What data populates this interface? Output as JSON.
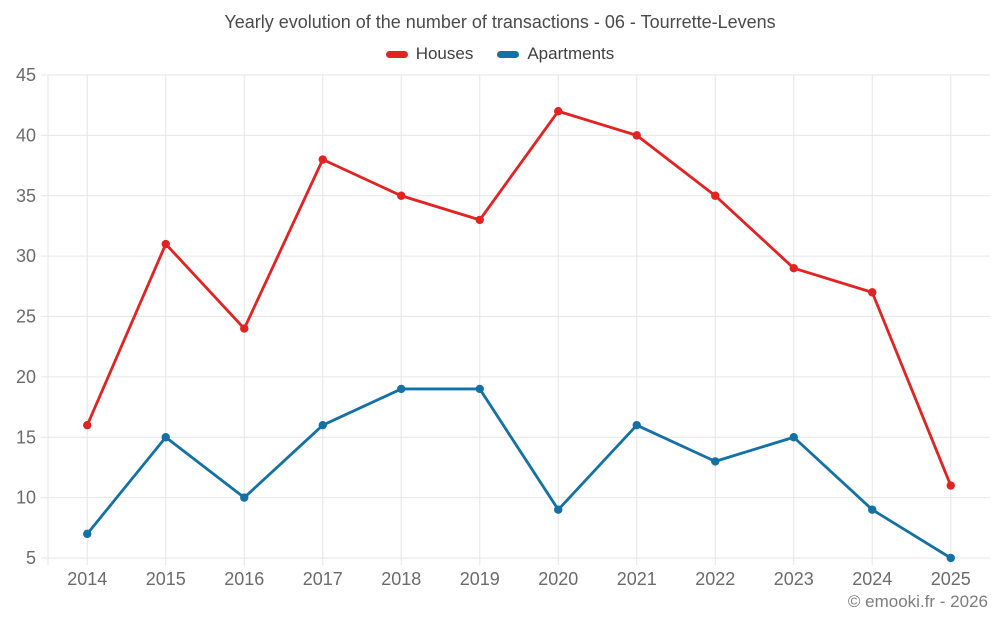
{
  "chart_data": {
    "type": "line",
    "title": "Yearly evolution of the number of transactions - 06 - Tourrette-Levens",
    "categories": [
      "2014",
      "2015",
      "2016",
      "2017",
      "2018",
      "2019",
      "2020",
      "2021",
      "2022",
      "2023",
      "2024",
      "2025"
    ],
    "series": [
      {
        "name": "Houses",
        "color": "#e32222",
        "values": [
          16,
          31,
          24,
          38,
          35,
          33,
          42,
          40,
          35,
          29,
          27,
          11
        ]
      },
      {
        "name": "Apartments",
        "color": "#1371a5",
        "values": [
          7,
          15,
          10,
          16,
          19,
          19,
          9,
          16,
          13,
          15,
          9,
          5
        ]
      }
    ],
    "ylim": [
      5,
      45
    ],
    "ytick_step": 5,
    "xlabel": "",
    "ylabel": "",
    "grid": true,
    "legend_position": "top"
  },
  "copyright": "© emooki.fr - 2026",
  "colors": {
    "background": "#ffffff",
    "grid": "#e6e6e6",
    "axis_label": "#6b6b6b",
    "title_text": "#4a4a4a",
    "legend_text": "#3f3f3f",
    "copyright_text": "#7d7d7d"
  }
}
